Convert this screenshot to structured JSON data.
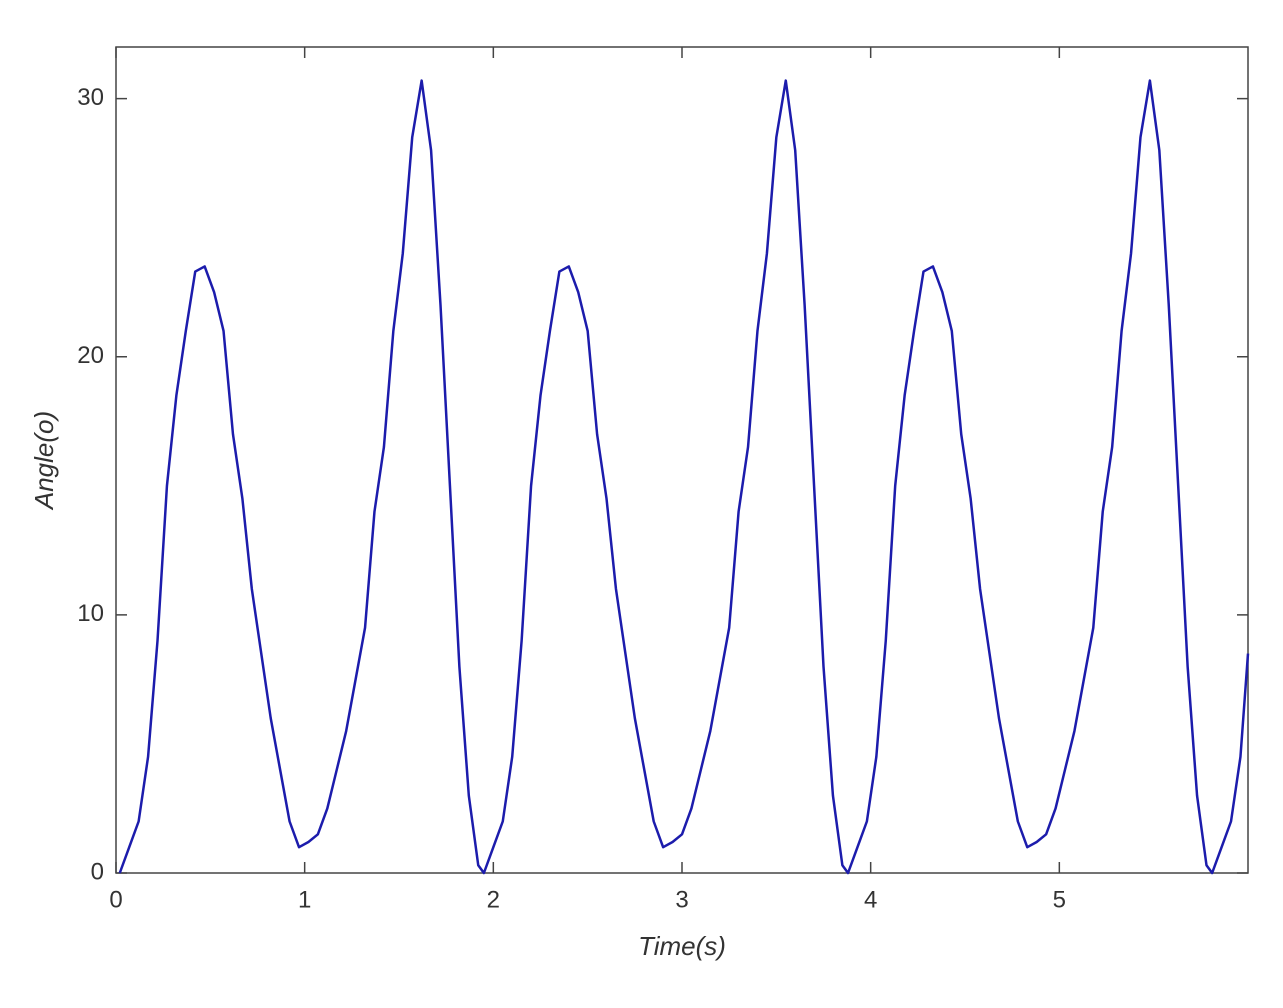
{
  "chart_data": {
    "type": "line",
    "x_label": "Time(s)",
    "y_label": "Angle(o)",
    "x": [
      0.02,
      0.07,
      0.12,
      0.17,
      0.22,
      0.27,
      0.32,
      0.37,
      0.42,
      0.47,
      0.52,
      0.57,
      0.62,
      0.67,
      0.72,
      0.77,
      0.82,
      0.87,
      0.92,
      0.97,
      1.02,
      1.07,
      1.12,
      1.17,
      1.22,
      1.27,
      1.32,
      1.37,
      1.42,
      1.47,
      1.52,
      1.57,
      1.62,
      1.67,
      1.72,
      1.77,
      1.82,
      1.87,
      1.92,
      1.95,
      2.0,
      2.05,
      2.1,
      2.15,
      2.2,
      2.25,
      2.3,
      2.35,
      2.4,
      2.45,
      2.5,
      2.55,
      2.6,
      2.65,
      2.7,
      2.75,
      2.8,
      2.85,
      2.9,
      2.95,
      3.0,
      3.05,
      3.1,
      3.15,
      3.2,
      3.25,
      3.3,
      3.35,
      3.4,
      3.45,
      3.5,
      3.55,
      3.6,
      3.65,
      3.7,
      3.75,
      3.8,
      3.85,
      3.88,
      3.93,
      3.98,
      4.03,
      4.08,
      4.13,
      4.18,
      4.23,
      4.28,
      4.33,
      4.38,
      4.43,
      4.48,
      4.53,
      4.58,
      4.63,
      4.68,
      4.73,
      4.78,
      4.83,
      4.88,
      4.93,
      4.98,
      5.03,
      5.08,
      5.13,
      5.18,
      5.23,
      5.28,
      5.33,
      5.38,
      5.43,
      5.48,
      5.53,
      5.58,
      5.63,
      5.68,
      5.73,
      5.78,
      5.81,
      5.86,
      5.91,
      5.96,
      6.0
    ],
    "series": [
      {
        "name": "Angle",
        "color": "#1c1cac",
        "values": [
          0,
          1,
          2,
          4.5,
          9,
          15,
          18.5,
          21,
          23.3,
          23.5,
          22.5,
          21,
          17,
          14.5,
          11,
          8.5,
          6,
          4,
          2,
          1,
          1.2,
          1.5,
          2.5,
          4,
          5.5,
          7.5,
          9.5,
          14,
          16.5,
          21,
          24,
          28.5,
          30.7,
          28,
          22,
          15,
          8,
          3,
          0.3,
          0,
          1,
          2,
          4.5,
          9,
          15,
          18.5,
          21,
          23.3,
          23.5,
          22.5,
          21,
          17,
          14.5,
          11,
          8.5,
          6,
          4,
          2,
          1,
          1.2,
          1.5,
          2.5,
          4,
          5.5,
          7.5,
          9.5,
          14,
          16.5,
          21,
          24,
          28.5,
          30.7,
          28,
          22,
          15,
          8,
          3,
          0.3,
          0,
          1,
          2,
          4.5,
          9,
          15,
          18.5,
          21,
          23.3,
          23.5,
          22.5,
          21,
          17,
          14.5,
          11,
          8.5,
          6,
          4,
          2,
          1,
          1.2,
          1.5,
          2.5,
          4,
          5.5,
          7.5,
          9.5,
          14,
          16.5,
          21,
          24,
          28.5,
          30.7,
          28,
          22,
          15,
          8,
          3,
          0.3,
          0,
          1,
          2,
          4.5,
          8.5
        ]
      }
    ],
    "xlim": [
      0,
      6
    ],
    "ylim": [
      0,
      32
    ],
    "xticks": [
      0,
      1,
      2,
      3,
      4,
      5
    ],
    "yticks": [
      0,
      10,
      20,
      30
    ],
    "grid": false
  }
}
